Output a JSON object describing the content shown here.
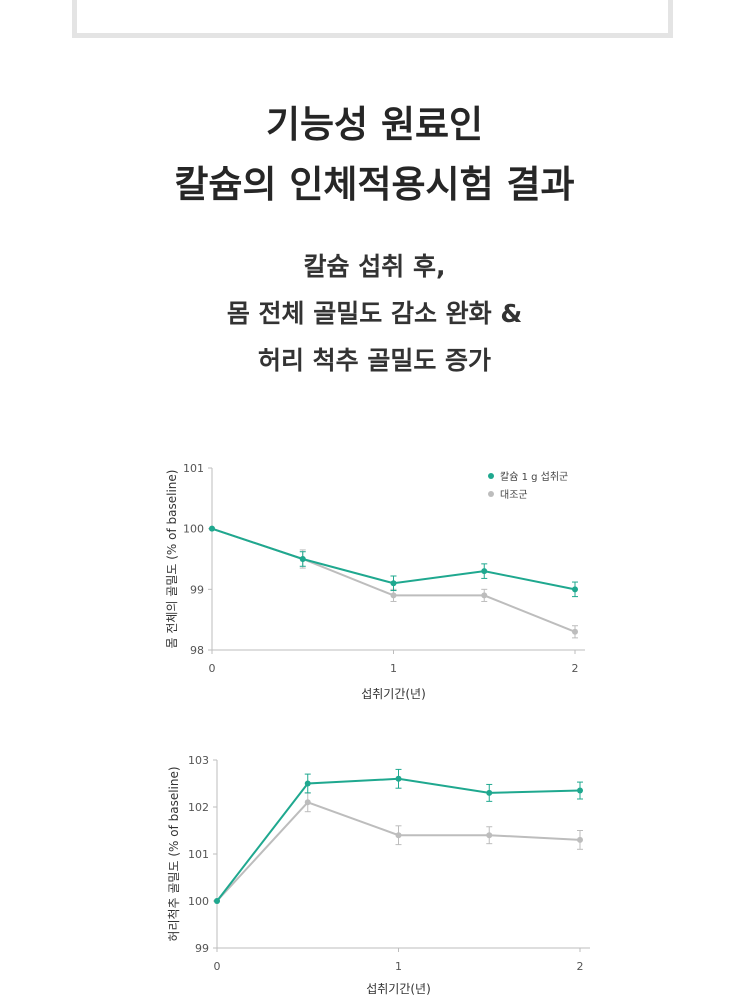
{
  "banner": {
    "text": ""
  },
  "title": {
    "line1": "기능성 원료인",
    "line2": "칼슘의 인체적용시험 결과"
  },
  "subtitle": {
    "line1": "칼슘 섭취 후,",
    "line2": "몸 전체 골밀도 감소 완화 &",
    "line3": "허리 척추 골밀도 증가"
  },
  "colors": {
    "calcium": "#1fa88f",
    "control": "#bdbdbd",
    "axis": "#bdbdbd"
  },
  "chart_data": [
    {
      "type": "line",
      "ylabel": "몸 전체의 골밀도 (% of baseline)",
      "xlabel": "섭취기간(년)",
      "ylim": [
        98,
        101
      ],
      "xlim": [
        0,
        2
      ],
      "xticks": [
        "0",
        "1",
        "2"
      ],
      "yticks": [
        "98",
        "99",
        "100",
        "101"
      ],
      "legend": {
        "position": "top-right"
      },
      "series": [
        {
          "name": "칼슘 1 g 섭취군",
          "color": "#1fa88f",
          "x": [
            0,
            0.5,
            1,
            1.5,
            2
          ],
          "y": [
            100,
            99.5,
            99.1,
            99.3,
            99.0
          ],
          "err": [
            0,
            0.12,
            0.12,
            0.12,
            0.12
          ]
        },
        {
          "name": "대조군",
          "color": "#bdbdbd",
          "x": [
            0,
            0.5,
            1,
            1.5,
            2
          ],
          "y": [
            100,
            99.5,
            98.9,
            98.9,
            98.3
          ],
          "err": [
            0,
            0.15,
            0.1,
            0.1,
            0.1
          ]
        }
      ]
    },
    {
      "type": "line",
      "ylabel": "허리척추 골밀도 (% of baseline)",
      "xlabel": "섭취기간(년)",
      "ylim": [
        99,
        103
      ],
      "xlim": [
        0,
        2
      ],
      "xticks": [
        "0",
        "1",
        "2"
      ],
      "yticks": [
        "99",
        "100",
        "101",
        "102",
        "103"
      ],
      "series": [
        {
          "name": "칼슘 1 g 섭취군",
          "color": "#1fa88f",
          "x": [
            0,
            0.5,
            1,
            1.5,
            2
          ],
          "y": [
            100,
            102.5,
            102.6,
            102.3,
            102.35
          ],
          "err": [
            0,
            0.2,
            0.2,
            0.18,
            0.18
          ]
        },
        {
          "name": "대조군",
          "color": "#bdbdbd",
          "x": [
            0,
            0.5,
            1,
            1.5,
            2
          ],
          "y": [
            100,
            102.1,
            101.4,
            101.4,
            101.3
          ],
          "err": [
            0,
            0.2,
            0.2,
            0.18,
            0.2
          ]
        }
      ]
    }
  ]
}
